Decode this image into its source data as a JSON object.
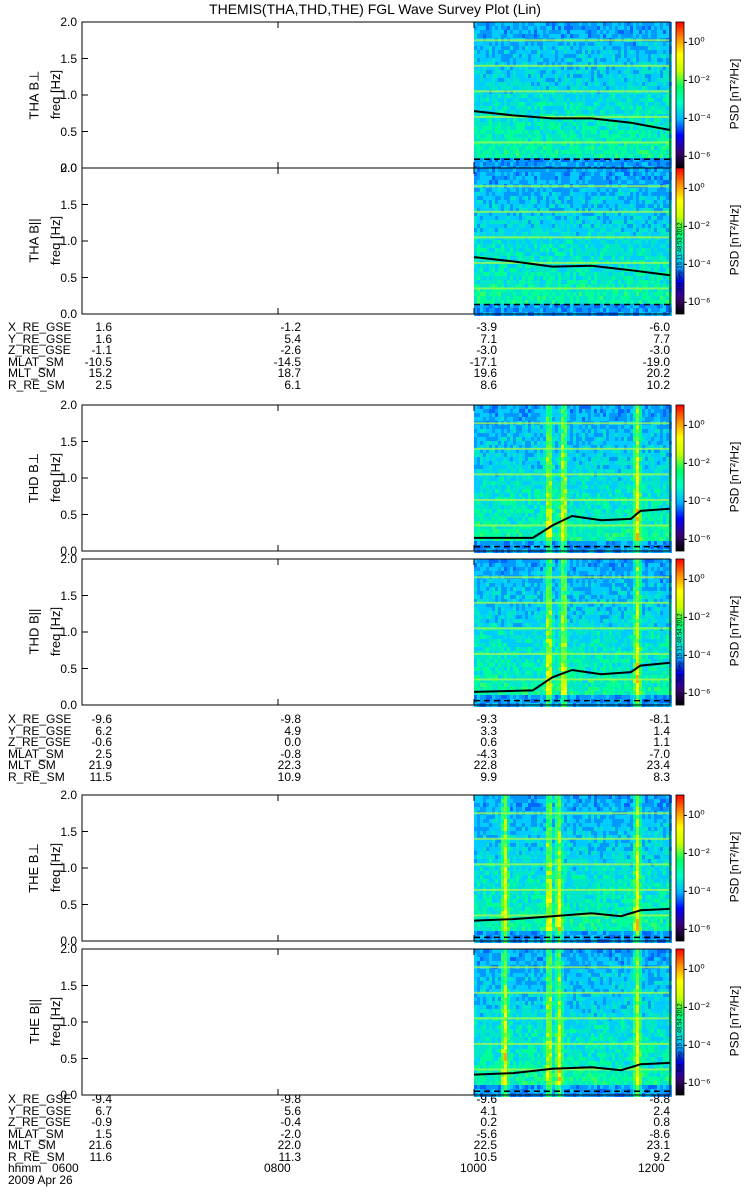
{
  "chart_data": {
    "type": "heatmap",
    "title": "THEMIS(THA,THD,THE) FGL Wave Survey Plot (Lin)",
    "x_start_label": "hhmm",
    "date": "2009 Apr 26",
    "x_ticks": [
      "0600",
      "0800",
      "1000",
      "1200"
    ],
    "x_hours": [
      6,
      8,
      10,
      12
    ],
    "data_start_hour": 10.0,
    "y_range": [
      0,
      2.0
    ],
    "y_ticks": [
      "0.0",
      "0.5",
      "1.0",
      "1.5",
      "2.0"
    ],
    "y_tick_values": [
      0,
      0.5,
      1.0,
      1.5,
      2.0
    ],
    "colorbar": {
      "title": "PSD [nT²/Hz]",
      "tick_labels": [
        "10⁰",
        "10⁻²",
        "10⁻⁴",
        "10⁻⁶"
      ],
      "colors": [
        "#000000",
        "#3a007a",
        "#0000ff",
        "#00b4ff",
        "#00ffc8",
        "#00ff64",
        "#c8ff00",
        "#ffff00",
        "#ff8c00",
        "#ff0000"
      ]
    },
    "panels": [
      {
        "ylabel": "THA B⊥",
        "ylabel_unit": "freq [Hz]",
        "stamp": "",
        "line": [
          [
            10.0,
            0.78
          ],
          [
            10.4,
            0.72
          ],
          [
            10.8,
            0.68
          ],
          [
            11.2,
            0.68
          ],
          [
            11.6,
            0.62
          ],
          [
            12.0,
            0.52
          ]
        ],
        "dash": [
          [
            10.0,
            0.12
          ],
          [
            12.0,
            0.12
          ]
        ],
        "bursts": []
      },
      {
        "ylabel": "THA B||",
        "ylabel_unit": "freq [Hz]",
        "stamp": "Sat Sep 15 11:48:53 2012",
        "line": [
          [
            10.0,
            0.78
          ],
          [
            10.4,
            0.72
          ],
          [
            10.8,
            0.65
          ],
          [
            11.2,
            0.66
          ],
          [
            11.6,
            0.6
          ],
          [
            12.0,
            0.53
          ]
        ],
        "dash": [
          [
            10.0,
            0.13
          ],
          [
            12.0,
            0.13
          ]
        ],
        "bursts": []
      },
      {
        "ylabel": "THD B⊥",
        "ylabel_unit": "freq [Hz]",
        "stamp": "",
        "line": [
          [
            10.0,
            0.18
          ],
          [
            10.6,
            0.18
          ],
          [
            10.8,
            0.35
          ],
          [
            11.0,
            0.48
          ],
          [
            11.3,
            0.42
          ],
          [
            11.6,
            0.44
          ],
          [
            11.7,
            0.55
          ],
          [
            12.0,
            0.58
          ]
        ],
        "dash": [
          [
            10.0,
            0.06
          ],
          [
            12.0,
            0.06
          ]
        ],
        "bursts": [
          10.75,
          10.9,
          11.65
        ]
      },
      {
        "ylabel": "THD B||",
        "ylabel_unit": "freq [Hz]",
        "stamp": "Sat Sep 15 11:48:54 2012",
        "line": [
          [
            10.0,
            0.18
          ],
          [
            10.6,
            0.2
          ],
          [
            10.8,
            0.38
          ],
          [
            11.0,
            0.48
          ],
          [
            11.3,
            0.42
          ],
          [
            11.6,
            0.45
          ],
          [
            11.7,
            0.54
          ],
          [
            12.0,
            0.58
          ]
        ],
        "dash": [
          [
            10.0,
            0.06
          ],
          [
            12.0,
            0.06
          ]
        ],
        "bursts": [
          10.75,
          10.9,
          11.65
        ]
      },
      {
        "ylabel": "THE B⊥",
        "ylabel_unit": "freq [Hz]",
        "stamp": "",
        "line": [
          [
            10.0,
            0.28
          ],
          [
            10.4,
            0.3
          ],
          [
            10.8,
            0.34
          ],
          [
            11.2,
            0.38
          ],
          [
            11.5,
            0.34
          ],
          [
            11.7,
            0.42
          ],
          [
            12.0,
            0.44
          ]
        ],
        "dash": [
          [
            10.0,
            0.05
          ],
          [
            12.0,
            0.05
          ]
        ],
        "bursts": [
          10.3,
          10.75,
          10.85,
          11.65
        ]
      },
      {
        "ylabel": "THE B||",
        "ylabel_unit": "freq [Hz]",
        "stamp": "Sat Sep 15 11:48:54 2012",
        "line": [
          [
            10.0,
            0.28
          ],
          [
            10.4,
            0.3
          ],
          [
            10.8,
            0.36
          ],
          [
            11.2,
            0.38
          ],
          [
            11.5,
            0.34
          ],
          [
            11.7,
            0.42
          ],
          [
            12.0,
            0.44
          ]
        ],
        "dash": [
          [
            10.0,
            0.05
          ],
          [
            12.0,
            0.05
          ]
        ],
        "bursts": [
          10.3,
          10.75,
          10.85,
          11.65
        ]
      }
    ],
    "ephemeris": [
      {
        "rows": [
          {
            "name": "X_RE_GSE",
            "values": [
              "1.6",
              "-1.2",
              "-3.9",
              "-6.0"
            ]
          },
          {
            "name": "Y_RE_GSE",
            "values": [
              "1.6",
              "5.4",
              "7.1",
              "7.7"
            ]
          },
          {
            "name": "Z_RE_GSE",
            "values": [
              "-1.1",
              "-2.6",
              "-3.0",
              "-3.0"
            ]
          },
          {
            "name": "MLAT_SM",
            "values": [
              "-10.5",
              "-14.5",
              "-17.1",
              "-19.0"
            ]
          },
          {
            "name": "MLT_SM",
            "values": [
              "15.2",
              "18.7",
              "19.6",
              "20.2"
            ]
          },
          {
            "name": "R_RE_SM",
            "values": [
              "2.5",
              "6.1",
              "8.6",
              "10.2"
            ]
          }
        ]
      },
      {
        "rows": [
          {
            "name": "X_RE_GSE",
            "values": [
              "-9.6",
              "-9.8",
              "-9.3",
              "-8.1"
            ]
          },
          {
            "name": "Y_RE_GSE",
            "values": [
              "6.2",
              "4.9",
              "3.3",
              "1.4"
            ]
          },
          {
            "name": "Z_RE_GSE",
            "values": [
              "-0.6",
              "0.0",
              "0.6",
              "1.1"
            ]
          },
          {
            "name": "MLAT_SM",
            "values": [
              "2.5",
              "-0.8",
              "-4.3",
              "-7.0"
            ]
          },
          {
            "name": "MLT_SM",
            "values": [
              "21.9",
              "22.3",
              "22.8",
              "23.4"
            ]
          },
          {
            "name": "R_RE_SM",
            "values": [
              "11.5",
              "10.9",
              "9.9",
              "8.3"
            ]
          }
        ]
      },
      {
        "rows": [
          {
            "name": "X_RE_GSE",
            "values": [
              "-9.4",
              "-9.8",
              "-9.6",
              "-8.8"
            ]
          },
          {
            "name": "Y_RE_GSE",
            "values": [
              "6.7",
              "5.6",
              "4.1",
              "2.4"
            ]
          },
          {
            "name": "Z_RE_GSE",
            "values": [
              "-0.9",
              "-0.4",
              "0.2",
              "0.8"
            ]
          },
          {
            "name": "MLAT_SM",
            "values": [
              "1.5",
              "-2.0",
              "-5.6",
              "-8.6"
            ]
          },
          {
            "name": "MLT_SM",
            "values": [
              "21.6",
              "22.0",
              "22.5",
              "23.1"
            ]
          },
          {
            "name": "R_RE_SM",
            "values": [
              "11.6",
              "11.3",
              "10.5",
              "9.2"
            ]
          }
        ]
      }
    ]
  }
}
